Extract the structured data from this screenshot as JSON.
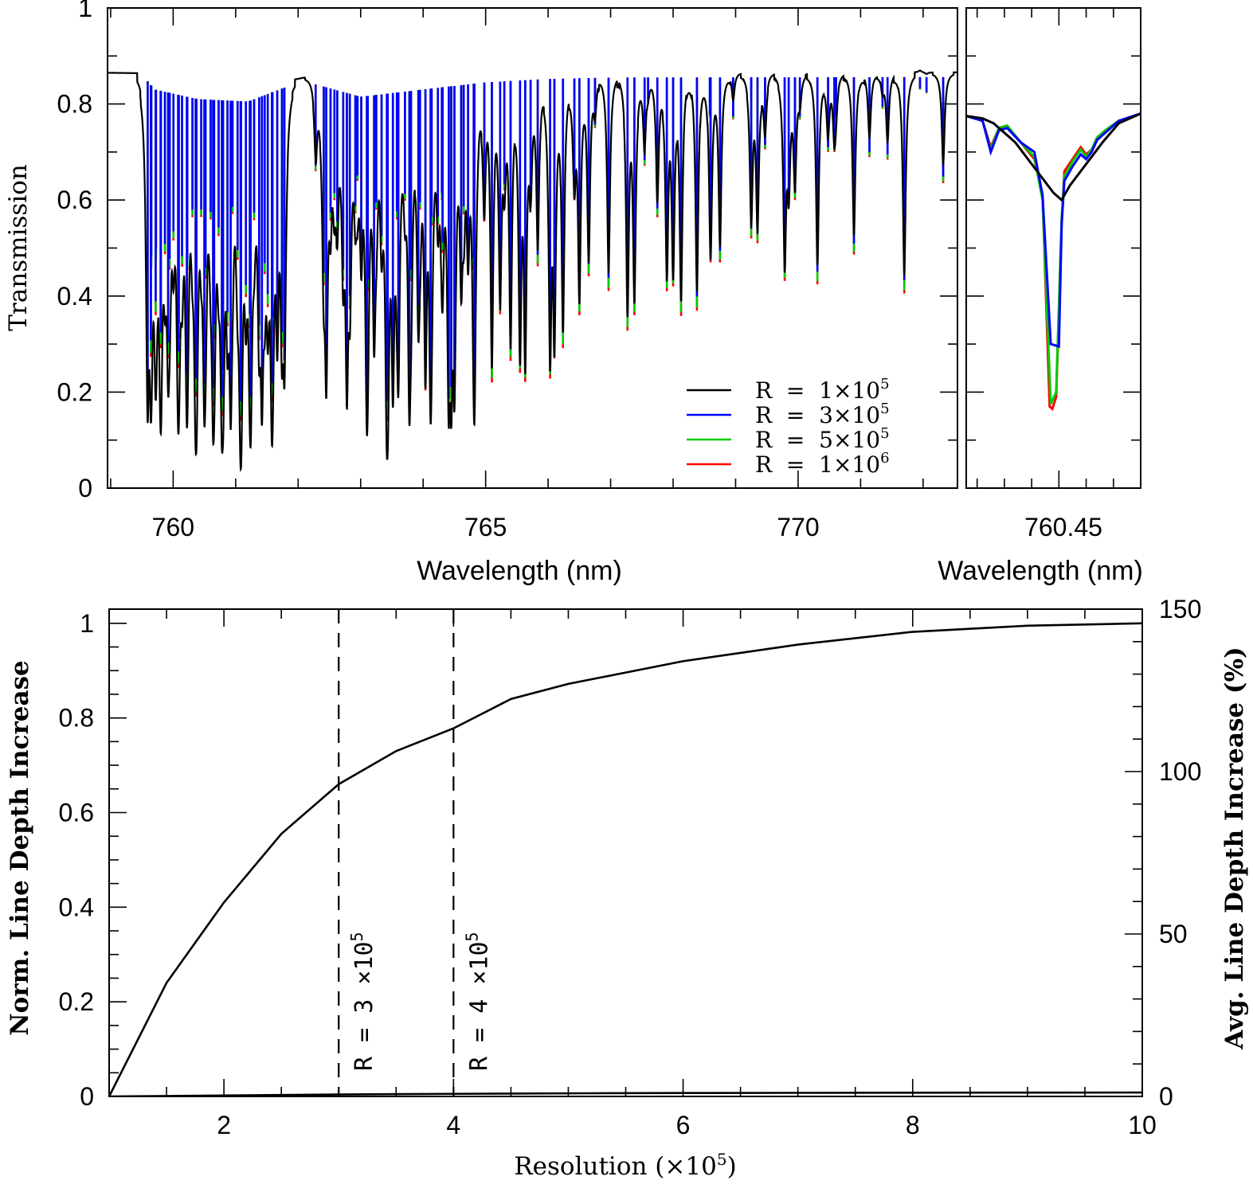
{
  "figure": {
    "panels": 3
  },
  "chart_data": [
    {
      "id": "spectrum",
      "type": "line",
      "title": "",
      "xlabel": "Wavelength (nm)",
      "ylabel": "Transmission",
      "xlim": [
        758.95,
        772.55
      ],
      "ylim": [
        0,
        1
      ],
      "x_ticks": [
        760,
        765,
        770
      ],
      "x_tick_labels": [
        "760",
        "765",
        "770"
      ],
      "y_ticks": [
        0,
        0.2,
        0.4,
        0.6,
        0.8,
        1
      ],
      "y_tick_labels": [
        "0",
        "0.2",
        "0.4",
        "0.6",
        "0.8",
        "1"
      ],
      "grid": false,
      "legend_position": "bottom-right",
      "continuum": [
        [
          758.95,
          0.865
        ],
        [
          759.55,
          0.864
        ],
        [
          759.7,
          0.84
        ],
        [
          760.4,
          0.82
        ],
        [
          761.2,
          0.815
        ],
        [
          761.9,
          0.85
        ],
        [
          762.1,
          0.855
        ],
        [
          762.3,
          0.85
        ],
        [
          763.0,
          0.825
        ],
        [
          764.0,
          0.84
        ],
        [
          765.0,
          0.855
        ],
        [
          766.0,
          0.862
        ],
        [
          767.0,
          0.865
        ],
        [
          772.55,
          0.866
        ]
      ],
      "line_groups": [
        {
          "start": 759.58,
          "end": 761.8,
          "step": 0.072,
          "depth_min": 0.14,
          "depth_max": 0.6
        },
        {
          "start": 762.42,
          "end": 764.9,
          "step": 0.1,
          "depth_min": 0.14,
          "depth_max": 0.6
        },
        {
          "start": 765.0,
          "end": 766.4,
          "step": 0.2,
          "depth_min": 0.22,
          "depth_max": 0.6
        },
        {
          "start": 766.4,
          "end": 772.3,
          "step": 0.28,
          "depth_min": 0.3,
          "depth_max": 0.83
        }
      ],
      "strong_lines": [
        {
          "x": 759.65,
          "y": 0.46
        },
        {
          "x": 759.72,
          "y": 0.36
        },
        {
          "x": 759.8,
          "y": 0.32
        },
        {
          "x": 759.92,
          "y": 0.27
        },
        {
          "x": 760.08,
          "y": 0.25
        },
        {
          "x": 760.22,
          "y": 0.2
        },
        {
          "x": 760.36,
          "y": 0.19
        },
        {
          "x": 760.5,
          "y": 0.18
        },
        {
          "x": 760.64,
          "y": 0.17
        },
        {
          "x": 760.78,
          "y": 0.15
        },
        {
          "x": 760.92,
          "y": 0.14
        },
        {
          "x": 761.08,
          "y": 0.14
        },
        {
          "x": 761.24,
          "y": 0.15
        },
        {
          "x": 761.42,
          "y": 0.15
        },
        {
          "x": 761.58,
          "y": 0.18
        },
        {
          "x": 761.78,
          "y": 0.23
        },
        {
          "x": 762.28,
          "y": 0.66
        },
        {
          "x": 762.45,
          "y": 0.19
        },
        {
          "x": 762.58,
          "y": 0.6
        },
        {
          "x": 762.78,
          "y": 0.17
        },
        {
          "x": 762.95,
          "y": 0.64
        },
        {
          "x": 763.1,
          "y": 0.15
        },
        {
          "x": 763.25,
          "y": 0.58
        },
        {
          "x": 763.42,
          "y": 0.14
        },
        {
          "x": 763.58,
          "y": 0.56
        },
        {
          "x": 763.78,
          "y": 0.14
        },
        {
          "x": 763.95,
          "y": 0.58
        },
        {
          "x": 764.12,
          "y": 0.15
        },
        {
          "x": 764.3,
          "y": 0.6
        },
        {
          "x": 764.45,
          "y": 0.17
        },
        {
          "x": 764.65,
          "y": 0.57
        },
        {
          "x": 764.82,
          "y": 0.18
        },
        {
          "x": 765.1,
          "y": 0.22
        },
        {
          "x": 765.3,
          "y": 0.62
        },
        {
          "x": 765.55,
          "y": 0.24
        },
        {
          "x": 765.72,
          "y": 0.6
        },
        {
          "x": 766.1,
          "y": 0.27
        },
        {
          "x": 766.5,
          "y": 0.36
        },
        {
          "x": 766.75,
          "y": 0.75
        },
        {
          "x": 767.38,
          "y": 0.36
        },
        {
          "x": 767.6,
          "y": 0.8
        },
        {
          "x": 767.9,
          "y": 0.41
        },
        {
          "x": 768.0,
          "y": 0.42
        },
        {
          "x": 768.6,
          "y": 0.47
        },
        {
          "x": 768.75,
          "y": 0.47
        },
        {
          "x": 769.25,
          "y": 0.52
        },
        {
          "x": 769.35,
          "y": 0.51
        },
        {
          "x": 769.85,
          "y": 0.6
        },
        {
          "x": 769.95,
          "y": 0.6
        },
        {
          "x": 770.48,
          "y": 0.7
        },
        {
          "x": 770.58,
          "y": 0.7
        },
        {
          "x": 771.35,
          "y": 0.79
        },
        {
          "x": 771.95,
          "y": 0.83
        }
      ],
      "series": [
        {
          "name": "R = 1×10⁵",
          "color": "#000000",
          "depth_factor": 1.0
        },
        {
          "name": "R = 3×10⁵",
          "color": "#0000ff",
          "depth_factor": 0.94
        },
        {
          "name": "R = 5×10⁵",
          "color": "#00cc00",
          "depth_factor": 0.985
        },
        {
          "name": "R = 1×10⁶",
          "color": "#ff0000",
          "depth_factor": 1.0
        }
      ],
      "legend": [
        {
          "prefix": "R  =  ",
          "mantissa": "1×10",
          "exponent": "5",
          "color": "#000000"
        },
        {
          "prefix": "R  =  ",
          "mantissa": "3×10",
          "exponent": "5",
          "color": "#0000ff"
        },
        {
          "prefix": "R  =  ",
          "mantissa": "5×10",
          "exponent": "5",
          "color": "#00cc00"
        },
        {
          "prefix": "R  =  ",
          "mantissa": "1×10",
          "exponent": "6",
          "color": "#ff0000"
        }
      ]
    },
    {
      "id": "zoom",
      "type": "line",
      "title": "",
      "xlabel": "Wavelength (nm)",
      "x_tick_labels": [
        "760.45"
      ],
      "xlim": [
        760.433,
        760.465
      ],
      "ylim": [
        0,
        1
      ],
      "series": [
        {
          "name": "R = 1×10⁵",
          "color": "#000000",
          "x": [
            760.433,
            760.436,
            760.438,
            760.44,
            760.442,
            760.444,
            760.446,
            760.448,
            760.449,
            760.4505,
            760.452,
            760.454,
            760.456,
            760.458,
            760.461,
            760.465
          ],
          "y": [
            0.775,
            0.77,
            0.76,
            0.74,
            0.72,
            0.69,
            0.66,
            0.63,
            0.615,
            0.6,
            0.63,
            0.66,
            0.69,
            0.72,
            0.76,
            0.78
          ]
        },
        {
          "name": "R = 3×10⁵",
          "color": "#0000ff",
          "x": [
            760.433,
            760.436,
            760.4375,
            760.439,
            760.4405,
            760.443,
            760.4455,
            760.447,
            760.4485,
            760.45,
            760.4505,
            760.451,
            760.4525,
            760.454,
            760.455,
            760.456,
            760.457,
            760.4585,
            760.461,
            760.465
          ],
          "y": [
            0.775,
            0.765,
            0.7,
            0.745,
            0.75,
            0.72,
            0.7,
            0.61,
            0.3,
            0.295,
            0.55,
            0.64,
            0.67,
            0.695,
            0.685,
            0.7,
            0.725,
            0.74,
            0.765,
            0.78
          ]
        },
        {
          "name": "R = 5×10⁵",
          "color": "#00cc00",
          "x": [
            760.433,
            760.436,
            760.4375,
            760.439,
            760.4405,
            760.443,
            760.4455,
            760.447,
            760.4485,
            760.4495,
            760.4505,
            760.451,
            760.4525,
            760.454,
            760.455,
            760.456,
            760.457,
            760.4585,
            760.461,
            760.465
          ],
          "y": [
            0.775,
            0.765,
            0.705,
            0.75,
            0.755,
            0.72,
            0.69,
            0.6,
            0.175,
            0.2,
            0.56,
            0.65,
            0.68,
            0.705,
            0.69,
            0.705,
            0.73,
            0.745,
            0.765,
            0.78
          ]
        },
        {
          "name": "R = 1×10⁶",
          "color": "#ff0000",
          "x": [
            760.433,
            760.436,
            760.4375,
            760.439,
            760.4405,
            760.443,
            760.4455,
            760.447,
            760.4483,
            760.4488,
            760.4495,
            760.4505,
            760.451,
            760.4525,
            760.454,
            760.455,
            760.456,
            760.457,
            760.4585,
            760.461,
            760.465
          ],
          "y": [
            0.775,
            0.765,
            0.71,
            0.75,
            0.755,
            0.72,
            0.685,
            0.61,
            0.17,
            0.165,
            0.19,
            0.55,
            0.66,
            0.685,
            0.71,
            0.695,
            0.705,
            0.73,
            0.745,
            0.765,
            0.78
          ]
        }
      ]
    },
    {
      "id": "resolution",
      "type": "line",
      "title": "",
      "xlabel": "Resolution (×10⁵)",
      "xlabel_main": "Resolution (×10",
      "xlabel_exp": "5",
      "xlabel_close": ")",
      "ylabel": "Norm. Line Depth Increase",
      "y2label": "Avg. Line Depth Increase (%)",
      "xlim": [
        1,
        10
      ],
      "ylim": [
        0,
        1.03
      ],
      "y2lim": [
        0,
        150
      ],
      "x_ticks": [
        2,
        4,
        6,
        8,
        10
      ],
      "x_tick_labels": [
        "2",
        "4",
        "6",
        "8",
        "10"
      ],
      "y_ticks": [
        0,
        0.2,
        0.4,
        0.6,
        0.8,
        1
      ],
      "y_tick_labels": [
        "0",
        "0.2",
        "0.4",
        "0.6",
        "0.8",
        "1"
      ],
      "y2_ticks": [
        0,
        50,
        100,
        150
      ],
      "y2_tick_labels": [
        "0",
        "50",
        "100",
        "150"
      ],
      "grid": false,
      "series": [
        {
          "name": "",
          "axis": "left",
          "color": "#000000",
          "x": [
            1,
            1.5,
            2,
            2.5,
            3,
            3.5,
            4,
            4.5,
            5,
            6,
            7,
            8,
            9,
            10
          ],
          "y": [
            0,
            0.24,
            0.41,
            0.555,
            0.66,
            0.73,
            0.778,
            0.84,
            0.872,
            0.92,
            0.955,
            0.982,
            0.995,
            1.0
          ]
        },
        {
          "name": "",
          "axis": "right",
          "color": "#000000",
          "x": [
            1,
            2,
            3,
            4,
            5,
            6,
            7,
            8,
            9,
            10
          ],
          "y": [
            0,
            0.3,
            0.6,
            0.8,
            0.95,
            1.05,
            1.1,
            1.15,
            1.18,
            1.2
          ]
        }
      ],
      "vlines": [
        {
          "x": 3,
          "label_main": "R  =  3 ×10",
          "label_exp": "5"
        },
        {
          "x": 4,
          "label_main": "R  =  4 ×10",
          "label_exp": "5"
        }
      ]
    }
  ]
}
